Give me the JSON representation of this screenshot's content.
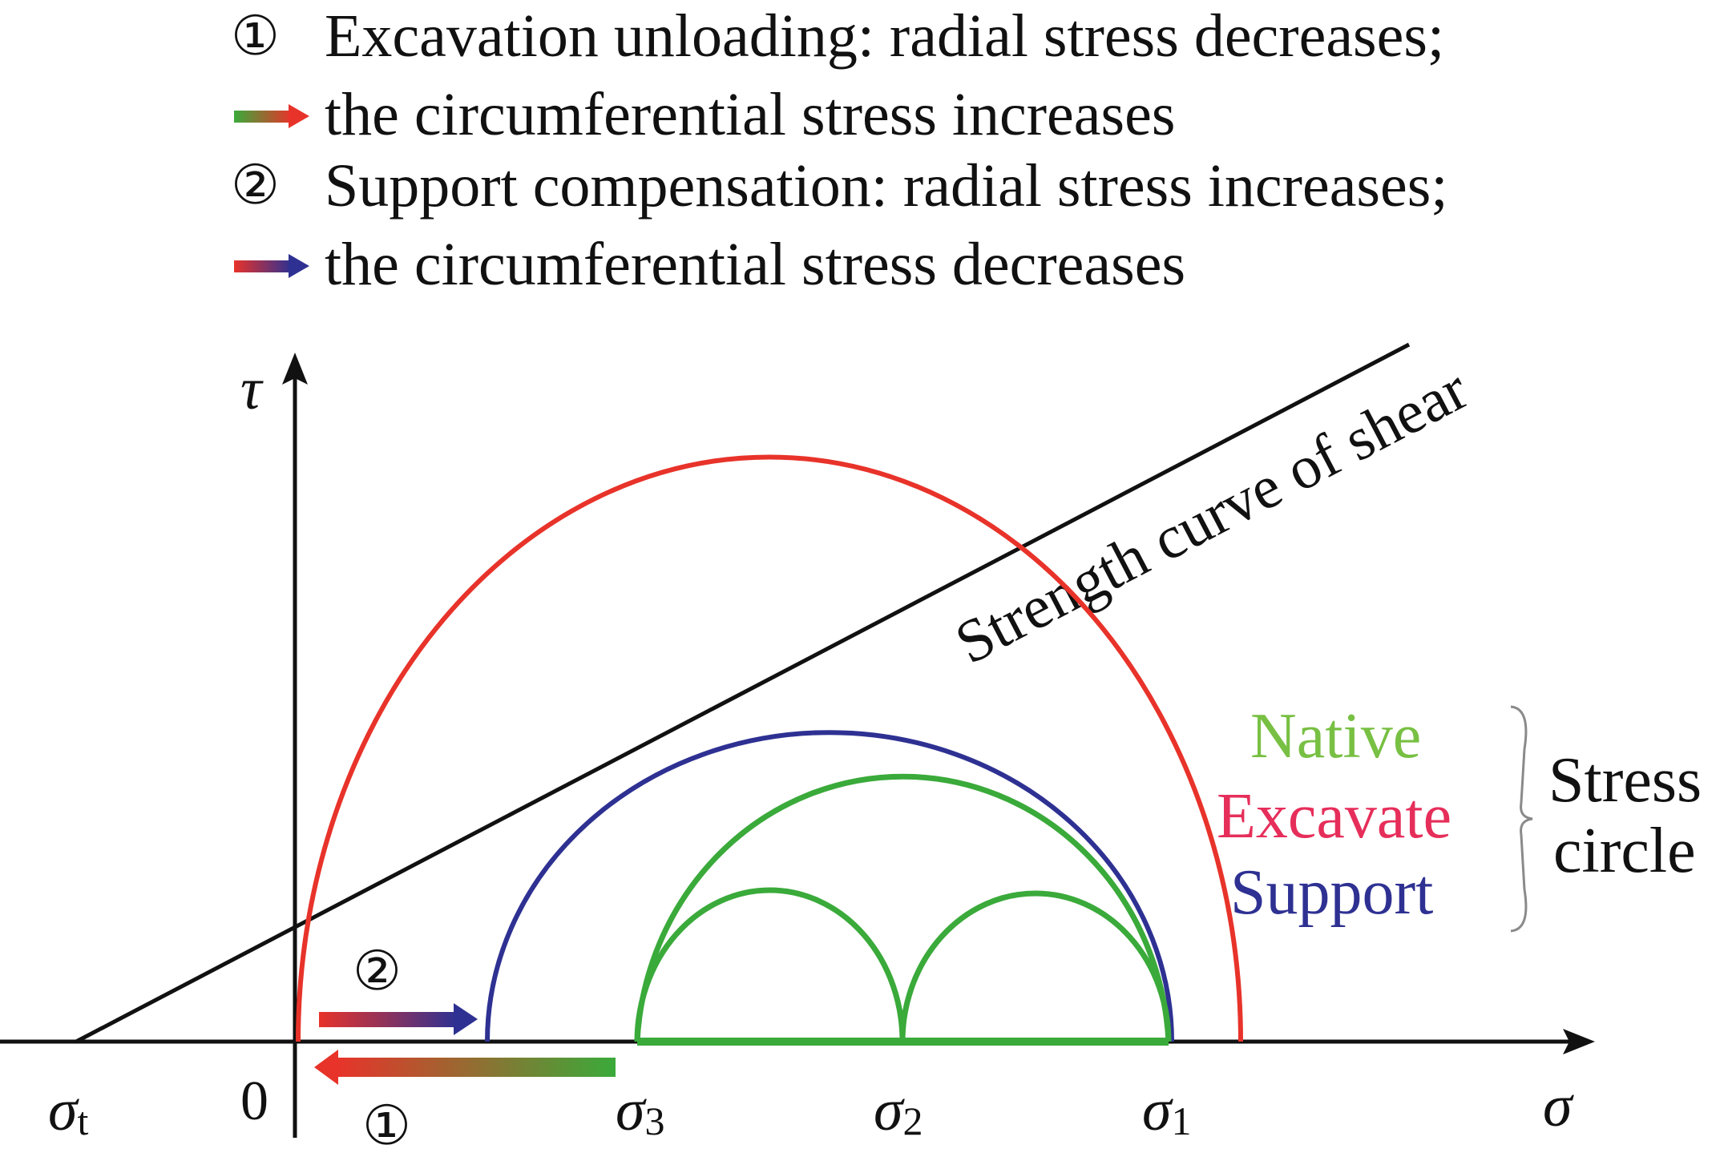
{
  "legend": {
    "line1_marker": "①",
    "line1_text": "Excavation unloading: radial stress decreases;",
    "line2_text": "the circumferential stress increases",
    "line3_marker": "②",
    "line3_text": "Support compensation: radial stress increases;",
    "line4_text": "the circumferential stress decreases"
  },
  "axes": {
    "y_label": "τ",
    "x_label": "σ",
    "origin": "0"
  },
  "ticks": {
    "sigma_t": {
      "symbol": "σ",
      "sub": "t"
    },
    "sigma_3": {
      "symbol": "σ",
      "sub": "3"
    },
    "sigma_2": {
      "symbol": "σ",
      "sub": "2"
    },
    "sigma_1": {
      "symbol": "σ",
      "sub": "1"
    }
  },
  "strength_curve_label": "Strength curve of shear",
  "circle_legend": {
    "native": "Native",
    "excavate": "Excavate",
    "support": "Support",
    "group_line1": "Stress",
    "group_line2": "circle"
  },
  "step_markers": {
    "step1": "①",
    "step2": "②"
  },
  "colors": {
    "native": "#3aaa3a",
    "excavate": "#e8332a",
    "support": "#2e3192",
    "excavate_label": "#e62e5a",
    "line": "#111111"
  }
}
